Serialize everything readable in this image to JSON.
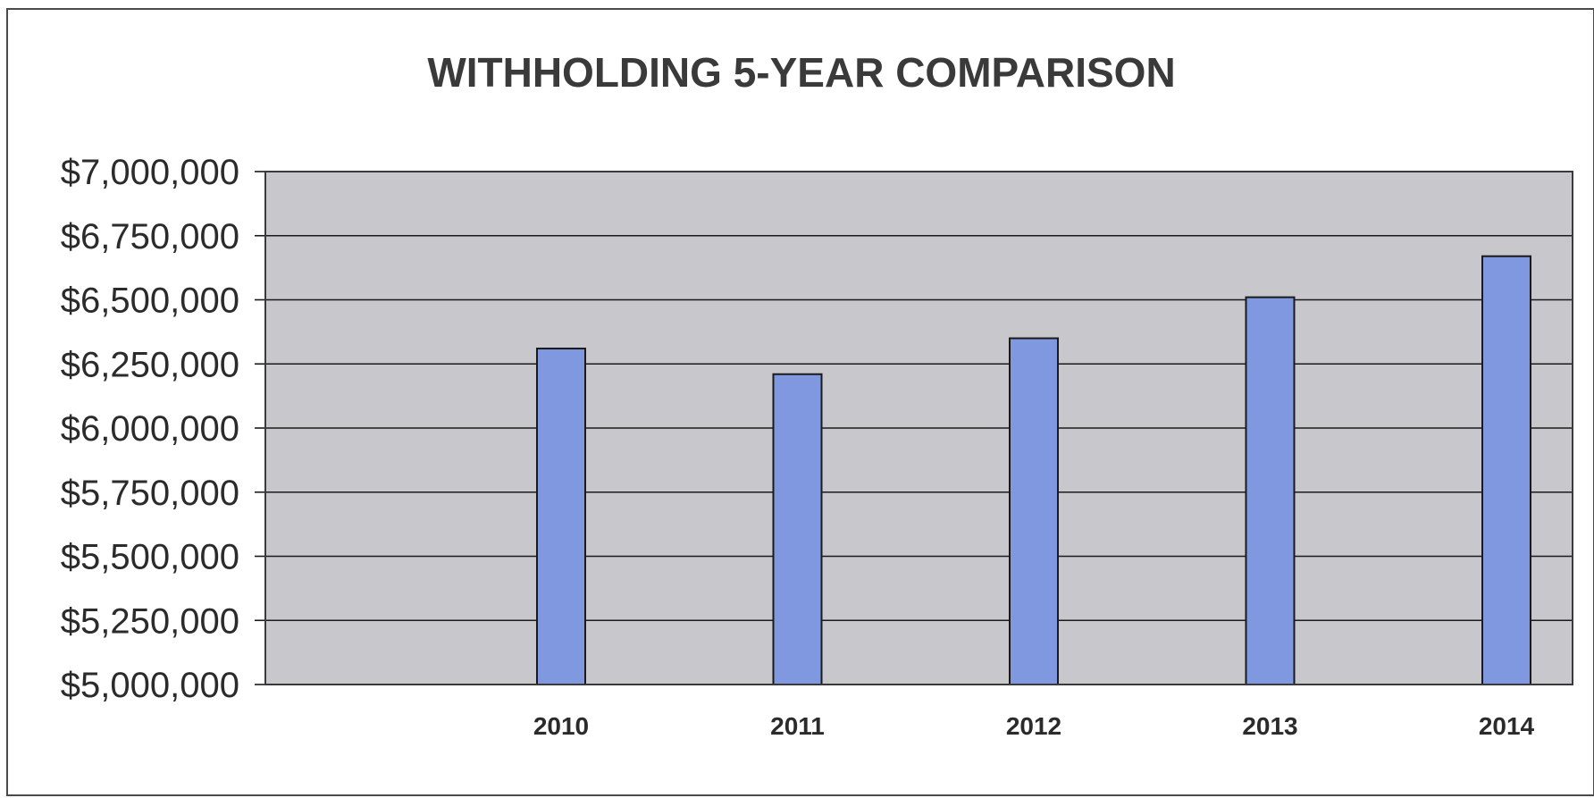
{
  "chart_data": {
    "type": "bar",
    "title": "WITHHOLDING 5-YEAR COMPARISON",
    "xlabel": "",
    "ylabel": "",
    "categories": [
      "2010",
      "2011",
      "2012",
      "2013",
      "2014"
    ],
    "values": [
      6310000,
      6210000,
      6350000,
      6510000,
      6670000
    ],
    "ylim": [
      5000000,
      7000000
    ],
    "y_ticks": [
      5000000,
      5250000,
      5500000,
      5750000,
      6000000,
      6250000,
      6500000,
      6750000,
      7000000
    ],
    "y_tick_labels": [
      "$5,000,000",
      "$5,250,000",
      "$5,500,000",
      "$5,750,000",
      "$6,000,000",
      "$6,250,000",
      "$6,500,000",
      "$6,750,000",
      "$7,000,000"
    ],
    "grid": true,
    "legend": "none",
    "colors": {
      "bar": "#8098e0",
      "plot_background": "#c8c8cc",
      "gridline": "#1a1a1a",
      "frame": "#3a3a3a"
    }
  }
}
